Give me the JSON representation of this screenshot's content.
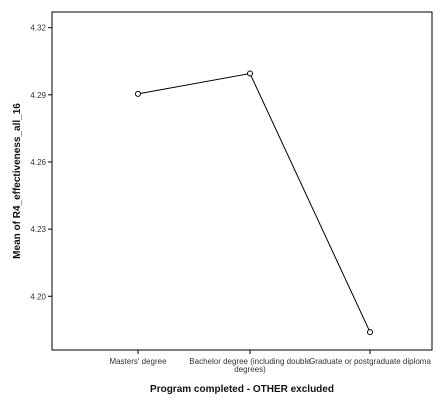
{
  "chart_data": {
    "type": "line",
    "title": "",
    "xlabel": "Program completed - OTHER excluded",
    "ylabel": "Mean of R4_effectiveness_all_16",
    "categories": [
      [
        "Masters' degree"
      ],
      [
        "Bachelor degree (including double",
        "degrees)"
      ],
      [
        "Graduate or postgraduate diploma"
      ]
    ],
    "series": [
      {
        "values": [
          4.2904,
          4.2995,
          4.184
        ]
      }
    ],
    "yticks": [
      4.2,
      4.23,
      4.26,
      4.29,
      4.32
    ],
    "ytick_labels": [
      "4.20",
      "4.23",
      "4.26",
      "4.29",
      "4.32"
    ],
    "ylim": [
      4.176,
      4.327
    ],
    "grid": false,
    "legend": "none",
    "colors": {
      "line": "#000000",
      "axis": "#000000",
      "background": "#ffffff"
    }
  }
}
